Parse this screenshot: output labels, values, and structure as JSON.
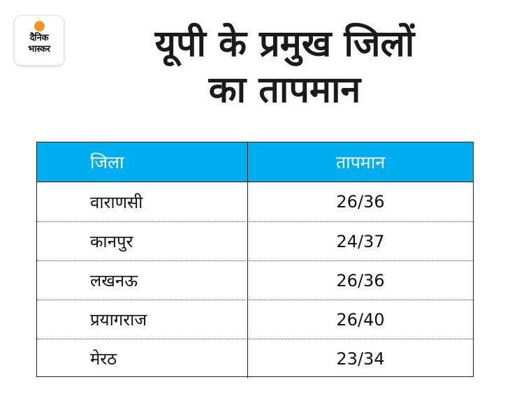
{
  "logo": {
    "line1": "दैनिक",
    "line2": "भास्कर",
    "accent_color": "#f7941d"
  },
  "title": {
    "line1": "यूपी के प्रमुख जिलों",
    "line2": "का तापमान"
  },
  "table": {
    "header_color": "#00adef",
    "headers": [
      "जिला",
      "तापमान"
    ],
    "rows": [
      {
        "district": "वाराणसी",
        "temperature": "26/36"
      },
      {
        "district": "कानपुर",
        "temperature": "24/37"
      },
      {
        "district": "लखनऊ",
        "temperature": "26/36"
      },
      {
        "district": "प्रयागराज",
        "temperature": "26/40"
      },
      {
        "district": "मेरठ",
        "temperature": "23/34"
      }
    ]
  }
}
